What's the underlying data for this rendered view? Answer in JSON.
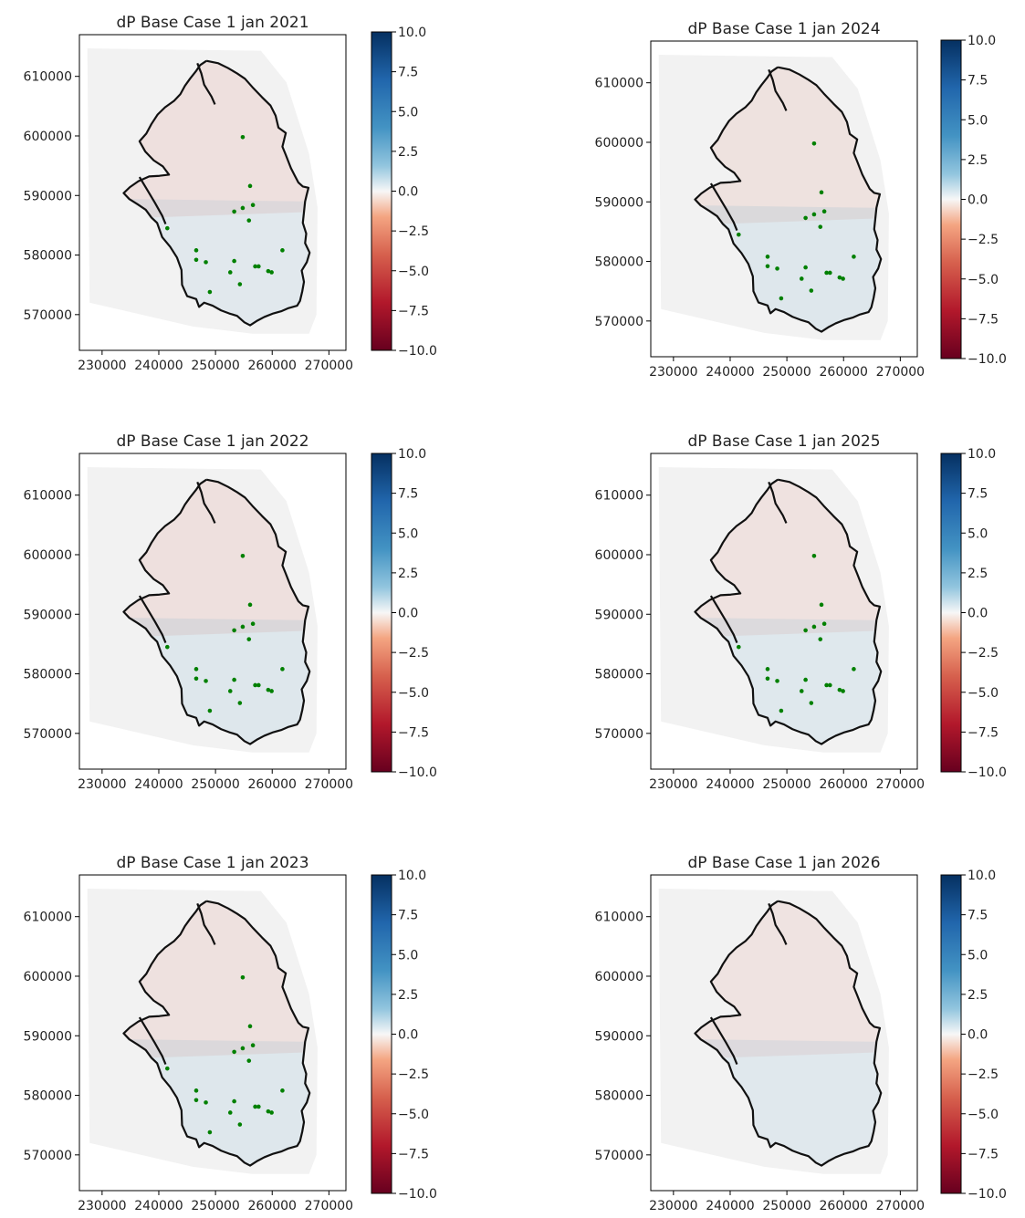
{
  "chart_data": [
    {
      "type": "heatmap",
      "title": "dP Base Case 1 jan 2021",
      "xticks": [
        "230000",
        "240000",
        "250000",
        "260000",
        "270000"
      ],
      "yticks": [
        "570000",
        "580000",
        "590000",
        "600000",
        "610000"
      ],
      "xlim": [
        226000,
        273000
      ],
      "ylim": [
        564000,
        617000
      ],
      "colorbar": {
        "ticks": [
          "10.0",
          "7.5",
          "5.0",
          "2.5",
          "0.0",
          "−2.5",
          "−5.0",
          "−7.5",
          "−10.0"
        ],
        "range": [
          -10,
          10
        ]
      },
      "wells_visible": true,
      "field_tint": {
        "north": -1.5,
        "south": 0.5
      }
    },
    {
      "type": "heatmap",
      "title": "dP Base Case 1 jan 2022",
      "xticks": [
        "230000",
        "240000",
        "250000",
        "260000",
        "270000"
      ],
      "yticks": [
        "570000",
        "580000",
        "590000",
        "600000",
        "610000"
      ],
      "xlim": [
        226000,
        273000
      ],
      "ylim": [
        564000,
        617000
      ],
      "colorbar": {
        "ticks": [
          "10.0",
          "7.5",
          "5.0",
          "2.5",
          "0.0",
          "−2.5",
          "−5.0",
          "−7.5",
          "−10.0"
        ],
        "range": [
          -10,
          10
        ]
      },
      "wells_visible": true,
      "field_tint": {
        "north": -1.5,
        "south": 1.0
      }
    },
    {
      "type": "heatmap",
      "title": "dP Base Case 1 jan 2023",
      "xticks": [
        "230000",
        "240000",
        "250000",
        "260000",
        "270000"
      ],
      "yticks": [
        "570000",
        "580000",
        "590000",
        "600000",
        "610000"
      ],
      "xlim": [
        226000,
        273000
      ],
      "ylim": [
        564000,
        617000
      ],
      "colorbar": {
        "ticks": [
          "10.0",
          "7.5",
          "5.0",
          "2.5",
          "0.0",
          "−2.5",
          "−5.0",
          "−7.5",
          "−10.0"
        ],
        "range": [
          -10,
          10
        ]
      },
      "wells_visible": true,
      "field_tint": {
        "north": -1.3,
        "south": 1.2
      }
    },
    {
      "type": "heatmap",
      "title": "dP Base Case 1 jan 2024",
      "xticks": [
        "230000",
        "240000",
        "250000",
        "260000",
        "270000"
      ],
      "yticks": [
        "570000",
        "580000",
        "590000",
        "600000",
        "610000"
      ],
      "xlim": [
        226000,
        273000
      ],
      "ylim": [
        564000,
        617000
      ],
      "colorbar": {
        "ticks": [
          "10.0",
          "7.5",
          "5.0",
          "2.5",
          "0.0",
          "−2.5",
          "−5.0",
          "−7.5",
          "−10.0"
        ],
        "range": [
          -10,
          10
        ]
      },
      "wells_visible": true,
      "field_tint": {
        "north": -1.0,
        "south": 1.0
      }
    },
    {
      "type": "heatmap",
      "title": "dP Base Case 1 jan 2025",
      "xticks": [
        "230000",
        "240000",
        "250000",
        "260000",
        "270000"
      ],
      "yticks": [
        "570000",
        "580000",
        "590000",
        "600000",
        "610000"
      ],
      "xlim": [
        226000,
        273000
      ],
      "ylim": [
        564000,
        617000
      ],
      "colorbar": {
        "ticks": [
          "10.0",
          "7.5",
          "5.0",
          "2.5",
          "0.0",
          "−2.5",
          "−5.0",
          "−7.5",
          "−10.0"
        ],
        "range": [
          -10,
          10
        ]
      },
      "wells_visible": true,
      "field_tint": {
        "north": -0.8,
        "south": 0.8
      }
    },
    {
      "type": "heatmap",
      "title": "dP Base Case 1 jan 2026",
      "xticks": [
        "230000",
        "240000",
        "250000",
        "260000",
        "270000"
      ],
      "yticks": [
        "570000",
        "580000",
        "590000",
        "600000",
        "610000"
      ],
      "xlim": [
        226000,
        273000
      ],
      "ylim": [
        564000,
        617000
      ],
      "colorbar": {
        "ticks": [
          "10.0",
          "7.5",
          "5.0",
          "2.5",
          "0.0",
          "−2.5",
          "−5.0",
          "−7.5",
          "−10.0"
        ],
        "range": [
          -10,
          10
        ]
      },
      "wells_visible": false,
      "field_tint": {
        "north": -0.6,
        "south": 0.6
      }
    }
  ],
  "wells": [
    [
      254800,
      599800
    ],
    [
      256100,
      591600
    ],
    [
      253300,
      587300
    ],
    [
      254800,
      587900
    ],
    [
      256600,
      588400
    ],
    [
      255900,
      585800
    ],
    [
      241500,
      584500
    ],
    [
      246600,
      580800
    ],
    [
      246600,
      579200
    ],
    [
      248300,
      578800
    ],
    [
      253300,
      579000
    ],
    [
      252600,
      577100
    ],
    [
      254300,
      575100
    ],
    [
      257000,
      578100
    ],
    [
      257600,
      578100
    ],
    [
      259300,
      577300
    ],
    [
      259900,
      577100
    ],
    [
      261800,
      580800
    ],
    [
      249000,
      573800
    ]
  ],
  "outline": [
    [
      248400,
      612600
    ],
    [
      250500,
      612200
    ],
    [
      252200,
      611400
    ],
    [
      253800,
      610500
    ],
    [
      255200,
      609600
    ],
    [
      256500,
      608200
    ],
    [
      258200,
      606500
    ],
    [
      259700,
      605100
    ],
    [
      260600,
      603400
    ],
    [
      261100,
      601400
    ],
    [
      262400,
      600500
    ],
    [
      261800,
      598200
    ],
    [
      262400,
      596800
    ],
    [
      263300,
      594600
    ],
    [
      264000,
      593300
    ],
    [
      264600,
      592200
    ],
    [
      265400,
      591500
    ],
    [
      266400,
      591300
    ],
    [
      266100,
      590200
    ],
    [
      265800,
      589000
    ],
    [
      265600,
      587200
    ],
    [
      265400,
      585400
    ],
    [
      266000,
      583600
    ],
    [
      265800,
      582000
    ],
    [
      266600,
      580400
    ],
    [
      266100,
      578800
    ],
    [
      265200,
      577400
    ],
    [
      265600,
      575500
    ],
    [
      265300,
      573900
    ],
    [
      264900,
      572300
    ],
    [
      264400,
      571500
    ],
    [
      262900,
      571100
    ],
    [
      261700,
      570600
    ],
    [
      260200,
      570200
    ],
    [
      258600,
      569600
    ],
    [
      257400,
      569000
    ],
    [
      256100,
      568200
    ],
    [
      255100,
      568700
    ],
    [
      253800,
      569800
    ],
    [
      252400,
      570200
    ],
    [
      251000,
      570700
    ],
    [
      249500,
      571500
    ],
    [
      248000,
      572000
    ],
    [
      247100,
      571300
    ],
    [
      246600,
      572600
    ],
    [
      245000,
      573100
    ],
    [
      244100,
      575000
    ],
    [
      244000,
      577500
    ],
    [
      243200,
      579600
    ],
    [
      242000,
      581400
    ],
    [
      240600,
      583000
    ],
    [
      239700,
      585400
    ],
    [
      238700,
      586300
    ],
    [
      237700,
      587600
    ],
    [
      236300,
      588500
    ],
    [
      234800,
      589400
    ],
    [
      233800,
      590400
    ],
    [
      234900,
      591400
    ],
    [
      236400,
      592400
    ],
    [
      238300,
      593200
    ],
    [
      240100,
      593300
    ],
    [
      241800,
      593500
    ],
    [
      240700,
      594900
    ],
    [
      239100,
      595900
    ],
    [
      237600,
      597400
    ],
    [
      236600,
      599100
    ],
    [
      237800,
      600400
    ],
    [
      238700,
      602000
    ],
    [
      239800,
      603600
    ],
    [
      241100,
      604800
    ],
    [
      242700,
      605900
    ],
    [
      243800,
      607000
    ],
    [
      244600,
      608400
    ],
    [
      245500,
      609600
    ],
    [
      246500,
      610800
    ],
    [
      247300,
      611900
    ],
    [
      248400,
      612600
    ]
  ],
  "inner_lines": [
    [
      [
        246800,
        612200
      ],
      [
        247500,
        610500
      ],
      [
        248000,
        608600
      ],
      [
        249300,
        606600
      ],
      [
        249900,
        605300
      ]
    ],
    [
      [
        236600,
        593100
      ],
      [
        237800,
        591200
      ],
      [
        239300,
        588800
      ],
      [
        240600,
        586600
      ],
      [
        241200,
        585200
      ]
    ]
  ]
}
